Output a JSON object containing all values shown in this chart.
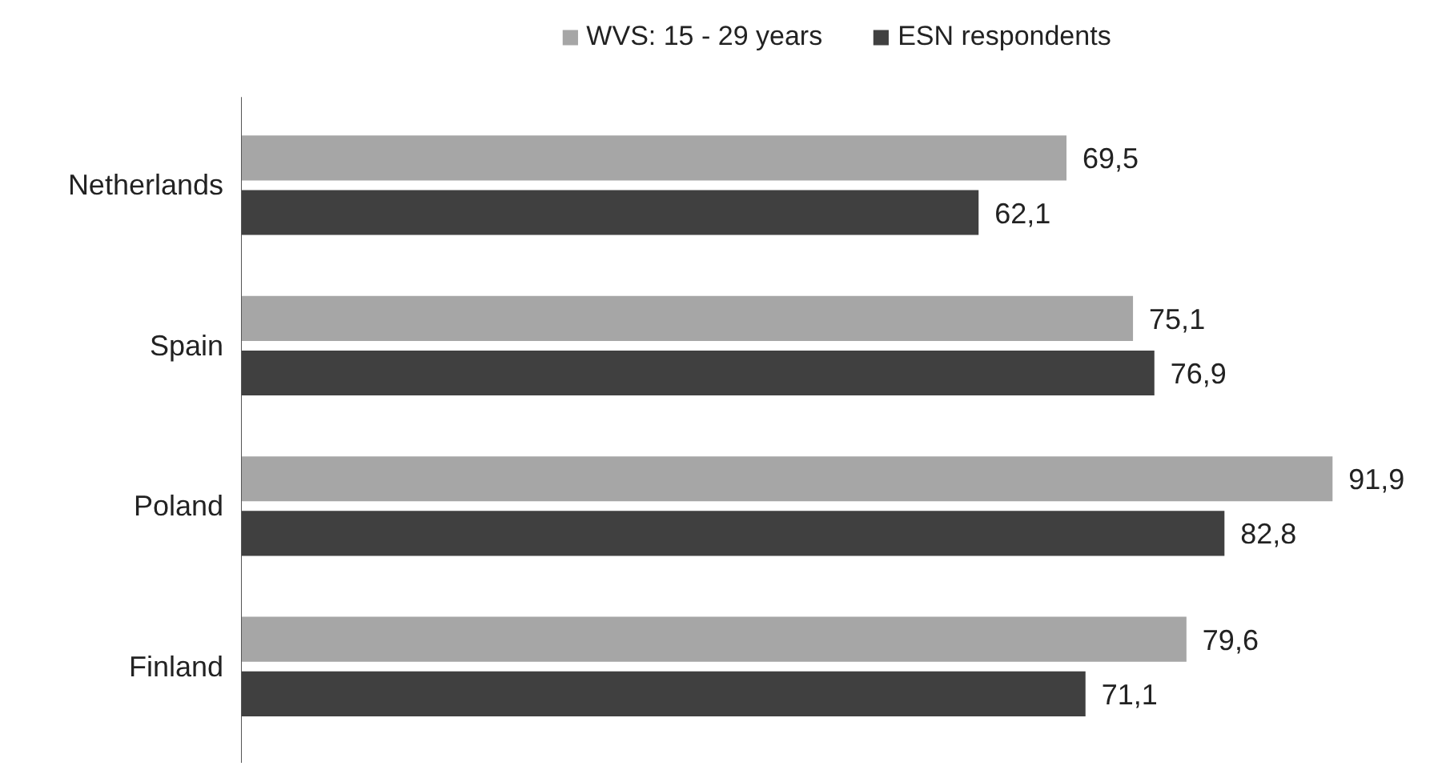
{
  "chart_data": {
    "type": "bar",
    "orientation": "horizontal",
    "categories": [
      "Netherlands",
      "Spain",
      "Poland",
      "Finland"
    ],
    "series": [
      {
        "name": "WVS: 15 - 29 years",
        "color": "#a6a6a6",
        "values": [
          69.5,
          75.1,
          91.9,
          79.6
        ],
        "value_labels": [
          "69,5",
          "75,1",
          "91,9",
          "79,6"
        ]
      },
      {
        "name": "ESN respondents",
        "color": "#404040",
        "values": [
          62.1,
          76.9,
          82.8,
          71.1
        ],
        "value_labels": [
          "62,1",
          "76,9",
          "82,8",
          "71,1"
        ]
      }
    ],
    "legend": "top",
    "tick_labels": "y"
  }
}
